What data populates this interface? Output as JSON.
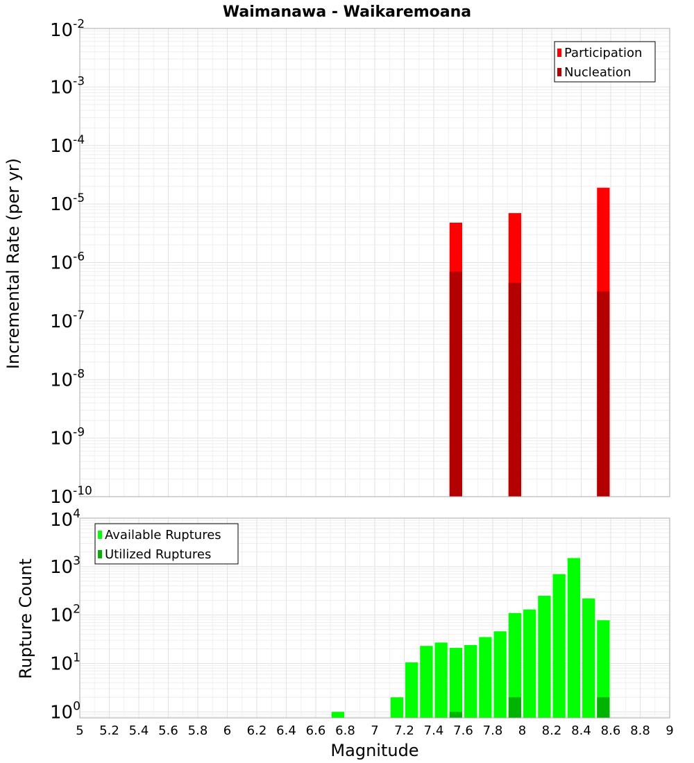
{
  "chart_data": [
    {
      "type": "bar",
      "title": "Waimanawa - Waikaremoana",
      "xlabel": "",
      "ylabel": "Incremental Rate (per yr)",
      "yscale": "log",
      "xlim": [
        5,
        9
      ],
      "ylim": [
        1e-10,
        0.01
      ],
      "bin_width": 0.1,
      "grid": true,
      "legend_position": "top-right",
      "ytick_exponents": [
        -10,
        -9,
        -8,
        -7,
        -6,
        -5,
        -4,
        -3,
        -2
      ],
      "series": [
        {
          "name": "Participation",
          "color": "#ff0000",
          "x": [
            7.55,
            7.95,
            8.55
          ],
          "values": [
            4.8e-06,
            7e-06,
            1.9e-05
          ]
        },
        {
          "name": "Nucleation",
          "color": "#b30000",
          "x": [
            7.55,
            7.95,
            8.55
          ],
          "values": [
            7e-07,
            4.5e-07,
            3.2e-07
          ]
        }
      ]
    },
    {
      "type": "bar",
      "title": "",
      "xlabel": "Magnitude",
      "ylabel": "Rupture Count",
      "yscale": "log",
      "xlim": [
        5,
        9
      ],
      "ylim": [
        0.75,
        10000
      ],
      "bin_width": 0.1,
      "grid": true,
      "legend_position": "top-left",
      "ytick_exponents": [
        0,
        1,
        2,
        3,
        4
      ],
      "xticks": [
        "5",
        "5.2",
        "5.4",
        "5.6",
        "5.8",
        "6",
        "6.2",
        "6.4",
        "6.6",
        "6.8",
        "7",
        "7.2",
        "7.4",
        "7.6",
        "7.8",
        "8",
        "8.2",
        "8.4",
        "8.6",
        "8.8",
        "9"
      ],
      "series": [
        {
          "name": "Available Ruptures",
          "color": "#00ff00",
          "x": [
            6.75,
            7.15,
            7.25,
            7.35,
            7.45,
            7.55,
            7.65,
            7.75,
            7.85,
            7.95,
            8.05,
            8.15,
            8.25,
            8.35,
            8.45,
            8.55
          ],
          "values": [
            1,
            2,
            10.5,
            23,
            27,
            21,
            24,
            35,
            46,
            110,
            130,
            250,
            700,
            1500,
            220,
            78
          ]
        },
        {
          "name": "Utilized Ruptures",
          "color": "#00b300",
          "x": [
            7.55,
            7.95,
            8.55
          ],
          "values": [
            1,
            2,
            2
          ]
        }
      ]
    }
  ]
}
